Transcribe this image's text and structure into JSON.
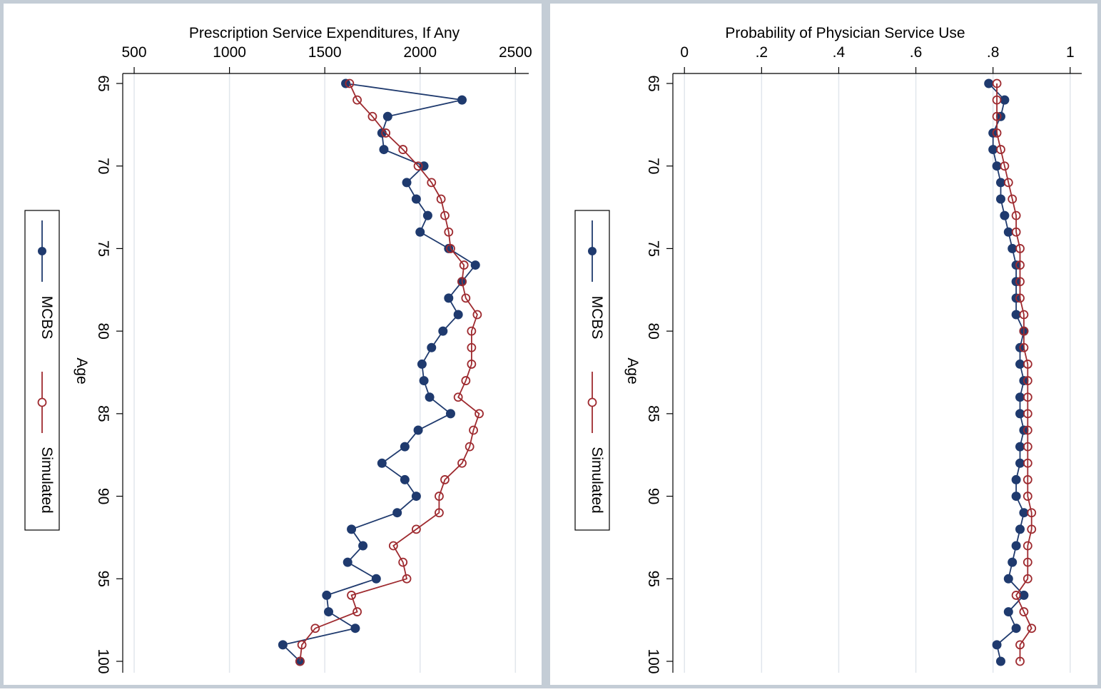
{
  "chart_data": [
    {
      "type": "line",
      "orientation": "rotated",
      "title": "Prescription Service Expenditures, If Any",
      "xlabel": "Prescription Service Expenditures, If Any",
      "ylabel": "Age",
      "xlim": [
        440,
        2570
      ],
      "ylim": [
        65,
        100
      ],
      "x_ticks": [
        500,
        1000,
        1500,
        2000,
        2500
      ],
      "x_tick_labels": [
        "500",
        "1000",
        "1500",
        "2000",
        "2500"
      ],
      "y_ticks": [
        65,
        70,
        75,
        80,
        85,
        90,
        95,
        100
      ],
      "y_tick_labels": [
        "65",
        "70",
        "75",
        "80",
        "85",
        "90",
        "95",
        "100"
      ],
      "grid": true,
      "legend_position": "left",
      "ages": [
        65,
        66,
        67,
        68,
        69,
        70,
        71,
        72,
        73,
        74,
        75,
        76,
        77,
        78,
        79,
        80,
        81,
        82,
        83,
        84,
        85,
        86,
        87,
        88,
        89,
        90,
        91,
        92,
        93,
        94,
        95,
        96,
        97,
        98,
        99,
        100
      ],
      "series": [
        {
          "name": "MCBS",
          "color": "#1f3a6e",
          "marker": "filled-circle",
          "values": [
            1610,
            2220,
            1830,
            1800,
            1810,
            2020,
            1930,
            1980,
            2040,
            2000,
            2150,
            2290,
            2220,
            2150,
            2200,
            2120,
            2060,
            2010,
            2020,
            2050,
            2160,
            1990,
            1920,
            1800,
            1920,
            1980,
            1880,
            1640,
            1700,
            1620,
            1770,
            1510,
            1520,
            1660,
            1280,
            1370
          ]
        },
        {
          "name": "Simulated",
          "color": "#9e2a2f",
          "marker": "hollow-circle",
          "values": [
            1630,
            1670,
            1750,
            1820,
            1910,
            1990,
            2060,
            2110,
            2130,
            2150,
            2160,
            2230,
            2220,
            2240,
            2300,
            2270,
            2270,
            2270,
            2240,
            2200,
            2310,
            2280,
            2260,
            2220,
            2130,
            2100,
            2100,
            1980,
            1860,
            1910,
            1930,
            1640,
            1670,
            1450,
            1380,
            1370
          ]
        }
      ]
    },
    {
      "type": "line",
      "orientation": "rotated",
      "title": "Probability of Physician Service Use",
      "xlabel": "Probability of Physician Service Use",
      "ylabel": "Age",
      "xlim": [
        -0.03,
        1.03
      ],
      "ylim": [
        65,
        100
      ],
      "x_ticks": [
        0,
        0.2,
        0.4,
        0.6,
        0.8,
        1
      ],
      "x_tick_labels": [
        "0",
        ".2",
        ".4",
        ".6",
        ".8",
        "1"
      ],
      "y_ticks": [
        65,
        70,
        75,
        80,
        85,
        90,
        95,
        100
      ],
      "y_tick_labels": [
        "65",
        "70",
        "75",
        "80",
        "85",
        "90",
        "95",
        "100"
      ],
      "grid": true,
      "legend_position": "left",
      "ages": [
        65,
        66,
        67,
        68,
        69,
        70,
        71,
        72,
        73,
        74,
        75,
        76,
        77,
        78,
        79,
        80,
        81,
        82,
        83,
        84,
        85,
        86,
        87,
        88,
        89,
        90,
        91,
        92,
        93,
        94,
        95,
        96,
        97,
        98,
        99,
        100
      ],
      "series": [
        {
          "name": "MCBS",
          "color": "#1f3a6e",
          "marker": "filled-circle",
          "values": [
            0.789,
            0.83,
            0.82,
            0.8,
            0.8,
            0.81,
            0.82,
            0.82,
            0.83,
            0.84,
            0.85,
            0.86,
            0.86,
            0.86,
            0.86,
            0.88,
            0.87,
            0.87,
            0.88,
            0.87,
            0.87,
            0.88,
            0.87,
            0.87,
            0.86,
            0.86,
            0.88,
            0.87,
            0.86,
            0.85,
            0.84,
            0.88,
            0.84,
            0.86,
            0.81,
            0.82
          ]
        },
        {
          "name": "Simulated",
          "color": "#9e2a2f",
          "marker": "hollow-circle",
          "values": [
            0.81,
            0.81,
            0.81,
            0.81,
            0.82,
            0.83,
            0.84,
            0.85,
            0.86,
            0.86,
            0.87,
            0.87,
            0.87,
            0.87,
            0.88,
            0.88,
            0.88,
            0.89,
            0.89,
            0.89,
            0.89,
            0.89,
            0.89,
            0.89,
            0.89,
            0.89,
            0.9,
            0.9,
            0.89,
            0.89,
            0.89,
            0.86,
            0.88,
            0.9,
            0.87,
            0.87
          ]
        }
      ]
    }
  ]
}
